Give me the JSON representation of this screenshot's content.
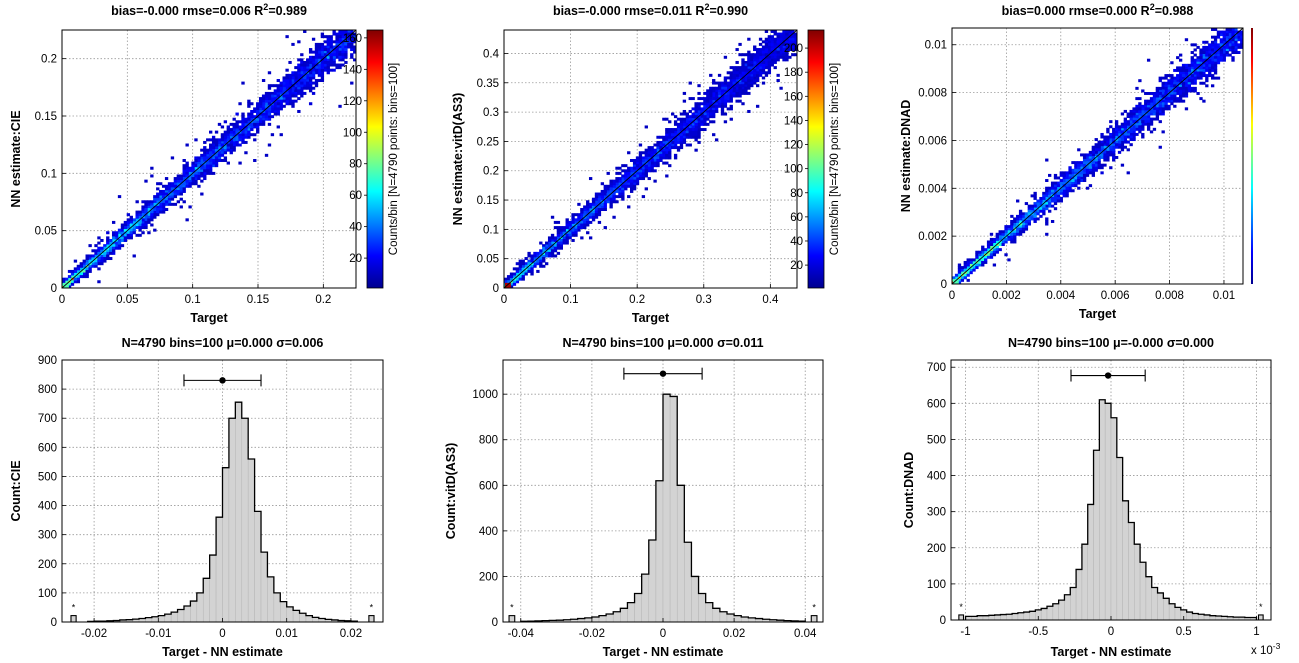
{
  "chart_data": [
    {
      "type": "scatter",
      "subtype": "2d-histogram-density",
      "title_parts": [
        "bias=-0.000 rmse=0.006 R",
        "2",
        "=0.989"
      ],
      "xlabel": "Target",
      "ylabel": "NN estimate:CIE",
      "xlim": [
        0,
        0.225
      ],
      "ylim": [
        0,
        0.225
      ],
      "xticks": [
        0,
        0.05,
        0.1,
        0.15,
        0.2
      ],
      "xticklabels": [
        "0",
        "0.05",
        "0.1",
        "0.15",
        "0.2"
      ],
      "yticks": [
        0,
        0.05,
        0.1,
        0.15,
        0.2
      ],
      "yticklabels": [
        "0",
        "0.05",
        "0.1",
        "0.15",
        "0.2"
      ],
      "grid": true,
      "identity_line": true,
      "n_points": 4790,
      "colorbar": {
        "label": "Counts/bin [N=4790 points: bins=100]",
        "range": [
          1,
          165
        ],
        "ticks": [
          20,
          40,
          60,
          80,
          100,
          120,
          140,
          160
        ],
        "ticklabels": [
          "20",
          "40",
          "60",
          "80",
          "100",
          "120",
          "140",
          "160"
        ]
      }
    },
    {
      "type": "scatter",
      "subtype": "2d-histogram-density",
      "title_parts": [
        "bias=-0.000 rmse=0.011 R",
        "2",
        "=0.990"
      ],
      "xlabel": "Target",
      "ylabel": "NN estimate:vitD(AS3)",
      "xlim": [
        0,
        0.44
      ],
      "ylim": [
        0,
        0.44
      ],
      "xticks": [
        0,
        0.1,
        0.2,
        0.3,
        0.4
      ],
      "xticklabels": [
        "0",
        "0.1",
        "0.2",
        "0.3",
        "0.4"
      ],
      "yticks": [
        0,
        0.05,
        0.1,
        0.15,
        0.2,
        0.25,
        0.3,
        0.35,
        0.4
      ],
      "yticklabels": [
        "0",
        "0.05",
        "0.1",
        "0.15",
        "0.2",
        "0.25",
        "0.3",
        "0.35",
        "0.4"
      ],
      "grid": true,
      "identity_line": true,
      "n_points": 4790,
      "colorbar": {
        "label": "Counts/bin [N=4790 points: bins=100]",
        "range": [
          1,
          215
        ],
        "ticks": [
          20,
          40,
          60,
          80,
          100,
          120,
          140,
          160,
          180,
          200
        ],
        "ticklabels": [
          "20",
          "40",
          "60",
          "80",
          "100",
          "120",
          "140",
          "160",
          "180",
          "200"
        ]
      }
    },
    {
      "type": "scatter",
      "subtype": "2d-histogram-density",
      "title_parts": [
        "bias=0.000 rmse=0.000 R",
        "2",
        "=0.988"
      ],
      "xlabel": "Target",
      "ylabel": "NN estimate:DNAD",
      "xlim": [
        0,
        0.0107
      ],
      "ylim": [
        0,
        0.0107
      ],
      "xticks": [
        0,
        0.002,
        0.004,
        0.006,
        0.008,
        0.01
      ],
      "xticklabels": [
        "0",
        "0.002",
        "0.004",
        "0.006",
        "0.008",
        "0.01"
      ],
      "yticks": [
        0,
        0.002,
        0.004,
        0.006,
        0.008,
        0.01
      ],
      "yticklabels": [
        "0",
        "0.002",
        "0.004",
        "0.006",
        "0.008",
        "0.01"
      ],
      "grid": true,
      "identity_line": true,
      "n_points": 4790,
      "colorbar": {
        "label": "",
        "range": [
          1,
          150
        ],
        "ticks": [],
        "ticklabels": []
      }
    },
    {
      "type": "bar",
      "subtype": "histogram",
      "title": "N=4790 bins=100 μ=0.000 σ=0.006",
      "xlabel": "Target - NN estimate",
      "ylabel": "Count:CIE",
      "xlim": [
        -0.025,
        0.025
      ],
      "ylim": [
        0,
        900
      ],
      "xticks": [
        -0.02,
        -0.01,
        0,
        0.01,
        0.02
      ],
      "xticklabels": [
        "-0.02",
        "-0.01",
        "0",
        "0.01",
        "0.02"
      ],
      "yticks": [
        0,
        100,
        200,
        300,
        400,
        500,
        600,
        700,
        800,
        900
      ],
      "yticklabels": [
        "0",
        "100",
        "200",
        "300",
        "400",
        "500",
        "600",
        "700",
        "800",
        "900"
      ],
      "grid": true,
      "bin_range": [
        -0.021,
        0.021
      ],
      "values": [
        2,
        3,
        3,
        4,
        5,
        7,
        8,
        10,
        12,
        15,
        18,
        22,
        27,
        34,
        43,
        55,
        72,
        100,
        150,
        230,
        360,
        530,
        700,
        755,
        700,
        560,
        380,
        240,
        155,
        100,
        70,
        52,
        40,
        30,
        22,
        16,
        12,
        9,
        7,
        5,
        4,
        3
      ],
      "outliers": [
        {
          "x": -0.0232,
          "count": 22,
          "label": "*"
        },
        {
          "x": 0.0232,
          "count": 22,
          "label": "*"
        }
      ],
      "errorbar": {
        "center": 0.0,
        "halfwidth": 0.006,
        "y": 830
      }
    },
    {
      "type": "bar",
      "subtype": "histogram",
      "title": "N=4790 bins=100 μ=0.000 σ=0.011",
      "xlabel": "Target - NN estimate",
      "ylabel": "Count:vitD(AS3)",
      "xlim": [
        -0.045,
        0.045
      ],
      "ylim": [
        0,
        1150
      ],
      "xticks": [
        -0.04,
        -0.02,
        0,
        0.02,
        0.04
      ],
      "xticklabels": [
        "-0.04",
        "-0.02",
        "0",
        "0.02",
        "0.04"
      ],
      "yticks": [
        0,
        200,
        400,
        600,
        800,
        1000
      ],
      "yticklabels": [
        "0",
        "200",
        "400",
        "600",
        "800",
        "1000"
      ],
      "grid": true,
      "bin_range": [
        -0.04,
        0.04
      ],
      "values": [
        3,
        4,
        5,
        6,
        7,
        8,
        10,
        12,
        15,
        18,
        22,
        28,
        35,
        45,
        60,
        85,
        125,
        210,
        360,
        620,
        1000,
        990,
        600,
        350,
        200,
        125,
        85,
        60,
        45,
        35,
        28,
        22,
        18,
        15,
        12,
        10,
        8,
        6,
        5,
        4
      ],
      "outliers": [
        {
          "x": -0.0425,
          "count": 28,
          "label": "*"
        },
        {
          "x": 0.0425,
          "count": 28,
          "label": "*"
        }
      ],
      "errorbar": {
        "center": 0.0,
        "halfwidth": 0.011,
        "y": 1090
      }
    },
    {
      "type": "bar",
      "subtype": "histogram",
      "title": "N=4790 bins=100 μ=-0.000 σ=0.000",
      "xlabel": "Target - NN estimate",
      "ylabel": "Count:DNAD",
      "xlim": [
        -1.1,
        1.1
      ],
      "ylim": [
        0,
        720
      ],
      "xticks": [
        -1,
        -0.5,
        0,
        0.5,
        1
      ],
      "xticklabels": [
        "-1",
        "-0.5",
        "0",
        "0.5",
        "1"
      ],
      "yticks": [
        0,
        100,
        200,
        300,
        400,
        500,
        600,
        700
      ],
      "yticklabels": [
        "0",
        "100",
        "200",
        "300",
        "400",
        "500",
        "600",
        "700"
      ],
      "x_multiplier_label": [
        "x 10",
        "-3"
      ],
      "grid": true,
      "bin_range": [
        -1.0,
        1.0
      ],
      "values": [
        10,
        10,
        12,
        12,
        13,
        14,
        15,
        16,
        18,
        20,
        22,
        24,
        28,
        32,
        38,
        45,
        55,
        70,
        90,
        140,
        210,
        320,
        470,
        610,
        600,
        560,
        450,
        330,
        270,
        210,
        160,
        120,
        90,
        75,
        60,
        45,
        35,
        28,
        22,
        18,
        16,
        14,
        12,
        11,
        10,
        9,
        8,
        8,
        7,
        7
      ],
      "outliers": [
        {
          "x": -1.03,
          "count": 14,
          "label": "*"
        },
        {
          "x": 1.03,
          "count": 14,
          "label": "*"
        }
      ],
      "errorbar": {
        "center": -0.02,
        "halfwidth": 0.255,
        "y": 677
      }
    }
  ]
}
